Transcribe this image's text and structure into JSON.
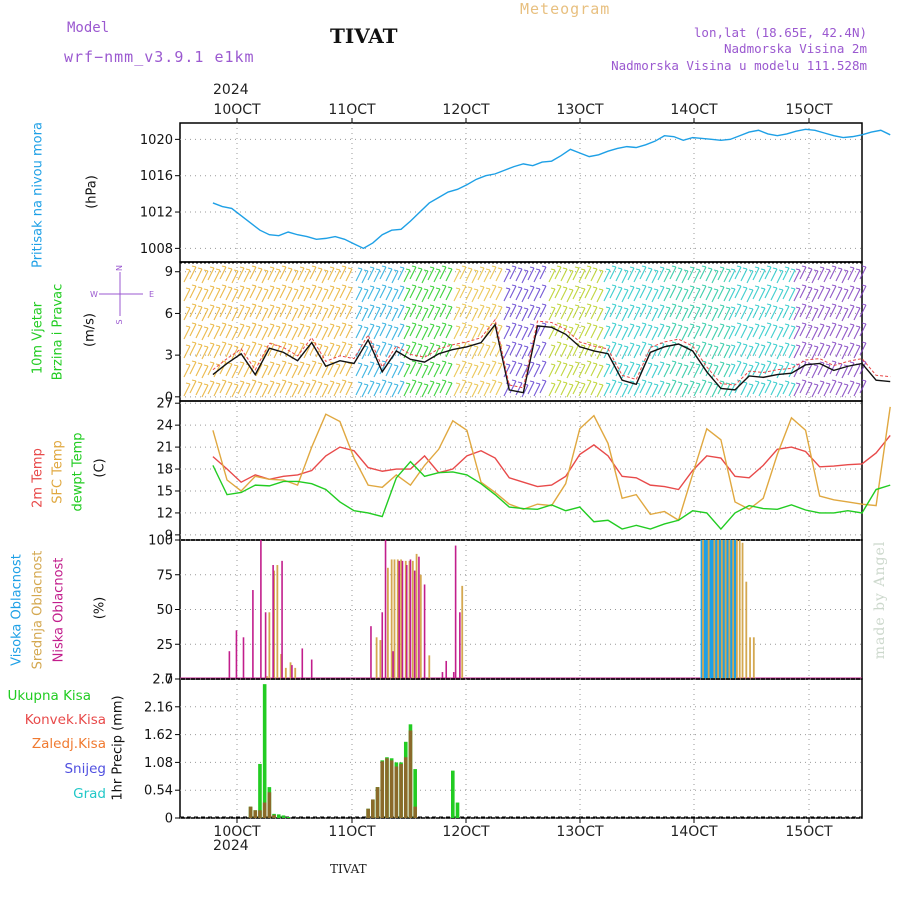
{
  "header": {
    "model_label": "Model",
    "model_name": "wrf−nmm_v3.9.1 e1km",
    "station": "TIVAT",
    "product": "Meteogram",
    "lonlat": "lon,lat (18.65E, 42.4N)",
    "elevation": "Nadmorska Visina 2m",
    "model_elevation": "Nadmorska Visina u modelu 111.528m"
  },
  "time_axis": {
    "year": "2024",
    "top_labels": [
      "10OCT",
      "11OCT",
      "12OCT",
      "13OCT",
      "14OCT",
      "15OCT"
    ],
    "bottom_labels": [
      "10OCT",
      "11OCT",
      "12OCT",
      "13OCT",
      "14OCT",
      "15OCT"
    ],
    "bottom_year": "2024",
    "footer_station": "TIVAT"
  },
  "panels": {
    "pressure": {
      "title": "Pritisak na nivou mora",
      "unit": "(hPa)"
    },
    "wind": {
      "title_line1": "10m Vjetar",
      "title_line2": "Brzina i Pravac",
      "unit": "(m/s)",
      "compass_n": "N",
      "compass_s": "S",
      "compass_w": "W",
      "compass_e": "E"
    },
    "temp": {
      "label_2m": "2m Temp",
      "label_sfc": "SFC Temp",
      "label_dew": "dewpt Temp",
      "unit": "(C)"
    },
    "cloud": {
      "label_high": "Visoka Oblacnost",
      "label_mid": "Srednja Oblacnost",
      "label_low": "Niska Oblacnost",
      "unit": "(%)"
    },
    "precip": {
      "unit_label": "1hr Precip (mm)",
      "legend": [
        "Ukupna Kisa",
        "Konvek.Kisa",
        "Zaledj.Kisa",
        "Snijeg",
        "Grad"
      ]
    }
  },
  "watermark": "made by Angel",
  "colors": {
    "pressure": "#1ea0e6",
    "temp2m": "#e84a4a",
    "sfc": "#e0a840",
    "dew": "#22cc22",
    "high_cloud": "#1ea0e6",
    "mid_cloud": "#d4a850",
    "low_cloud": "#c21e8c",
    "total_rain": "#22cc22",
    "conv_rain": "#e84a4a",
    "frozen": "#f07a30",
    "snow": "#5050e0",
    "hail": "#22c8c8",
    "model": "#9b59d0",
    "product": "#e8c080"
  },
  "chart_data": [
    {
      "type": "line",
      "name": "pressure",
      "ylim": [
        1006.5,
        1021.8
      ],
      "yticks": [
        1008,
        1012,
        1016,
        1020
      ],
      "x": [
        0,
        2,
        4,
        6,
        8,
        10,
        12,
        14,
        16,
        18,
        20,
        22,
        24,
        26,
        28,
        30,
        32,
        34,
        36,
        38,
        40,
        42,
        44,
        46,
        48,
        50,
        52,
        54,
        56,
        58,
        60,
        62,
        64,
        66,
        68,
        70,
        72,
        74,
        76,
        78,
        80,
        82,
        84,
        86,
        88,
        90,
        92,
        94,
        96,
        98,
        100,
        102,
        104,
        106,
        108,
        110,
        112,
        114,
        116,
        118,
        120,
        122,
        124,
        126,
        128,
        130,
        132,
        134,
        136,
        138,
        140,
        142,
        144
      ],
      "values": [
        1013.0,
        1012.6,
        1012.4,
        1011.6,
        1010.8,
        1010.0,
        1009.5,
        1009.4,
        1009.8,
        1009.5,
        1009.3,
        1009.0,
        1009.1,
        1009.3,
        1009.0,
        1008.5,
        1008.0,
        1008.6,
        1009.5,
        1010.0,
        1010.1,
        1011.0,
        1012.0,
        1013.0,
        1013.6,
        1014.2,
        1014.5,
        1015.0,
        1015.6,
        1016.0,
        1016.2,
        1016.6,
        1017.0,
        1017.3,
        1017.1,
        1017.5,
        1017.6,
        1018.2,
        1018.9,
        1018.5,
        1018.1,
        1018.3,
        1018.7,
        1019.0,
        1019.2,
        1019.1,
        1019.4,
        1019.8,
        1020.4,
        1020.3,
        1019.9,
        1020.2,
        1020.1,
        1020.0,
        1019.9,
        1020.0,
        1020.4,
        1020.8,
        1021.0,
        1020.6,
        1020.4,
        1020.6,
        1020.9,
        1021.1,
        1021.0,
        1020.7,
        1020.4,
        1020.2,
        1020.3,
        1020.5,
        1020.8,
        1021.0,
        1020.5
      ]
    },
    {
      "type": "line",
      "name": "wind_speed",
      "ylim": [
        -0.3,
        9.7
      ],
      "yticks": [
        0,
        3,
        6,
        9
      ],
      "x": [
        0,
        3,
        6,
        9,
        12,
        15,
        18,
        21,
        24,
        27,
        30,
        33,
        36,
        39,
        42,
        45,
        48,
        51,
        54,
        57,
        60,
        63,
        66,
        69,
        72,
        75,
        78,
        81,
        84,
        87,
        90,
        93,
        96,
        99,
        102,
        105,
        108,
        111,
        114,
        117,
        120,
        123,
        126,
        129,
        132,
        135,
        138,
        141,
        144
      ],
      "values": [
        1.6,
        2.4,
        3.1,
        1.6,
        3.5,
        3.2,
        2.6,
        3.9,
        2.2,
        2.6,
        2.4,
        4.1,
        1.8,
        3.3,
        2.7,
        2.5,
        3.1,
        3.4,
        3.6,
        3.9,
        5.2,
        0.5,
        0.3,
        5.1,
        5.0,
        4.5,
        3.6,
        3.3,
        3.1,
        1.2,
        0.9,
        3.2,
        3.6,
        3.8,
        3.3,
        1.8,
        0.6,
        0.5,
        1.5,
        1.4,
        1.6,
        1.7,
        2.3,
        2.4,
        1.9,
        2.2,
        2.4,
        1.2,
        1.1
      ]
    },
    {
      "type": "line",
      "name": "temperature",
      "ylim": [
        8.3,
        27.3
      ],
      "yticks": [
        9,
        12,
        15,
        18,
        21,
        24,
        27
      ],
      "x": [
        0,
        3,
        6,
        9,
        12,
        15,
        18,
        21,
        24,
        27,
        30,
        33,
        36,
        39,
        42,
        45,
        48,
        51,
        54,
        57,
        60,
        63,
        66,
        69,
        72,
        75,
        78,
        81,
        84,
        87,
        90,
        93,
        96,
        99,
        102,
        105,
        108,
        111,
        114,
        117,
        120,
        123,
        126,
        129,
        132,
        135,
        138,
        141,
        144
      ],
      "series": [
        {
          "name": "2m Temp",
          "values": [
            19.7,
            18.0,
            16.2,
            17.2,
            16.6,
            17.0,
            17.2,
            17.8,
            19.8,
            21.0,
            20.5,
            18.2,
            17.7,
            18.0,
            18.0,
            19.8,
            17.5,
            18.0,
            19.8,
            20.5,
            19.5,
            16.8,
            16.2,
            15.6,
            15.8,
            17.0,
            20.0,
            21.3,
            19.8,
            17.0,
            16.8,
            15.8,
            15.6,
            15.2,
            17.8,
            19.8,
            19.5,
            17.0,
            16.8,
            18.5,
            20.7,
            21.0,
            20.4,
            18.3,
            18.4,
            18.6,
            18.7,
            20.2,
            22.6
          ]
        },
        {
          "name": "SFC Temp",
          "values": [
            23.3,
            16.5,
            15.0,
            17.0,
            16.6,
            16.5,
            15.8,
            21.0,
            25.5,
            24.5,
            19.5,
            15.8,
            15.5,
            17.2,
            15.8,
            18.5,
            20.7,
            24.6,
            23.3,
            16.2,
            14.8,
            13.2,
            12.5,
            13.2,
            13.0,
            16.0,
            23.5,
            25.3,
            21.5,
            14.0,
            14.5,
            11.8,
            12.2,
            11.0,
            17.3,
            23.5,
            22.0,
            13.5,
            12.5,
            14.0,
            20.0,
            25.0,
            23.3,
            14.3,
            13.8,
            13.5,
            13.2,
            13.0,
            26.5
          ]
        },
        {
          "name": "dewpt Temp",
          "values": [
            18.5,
            14.5,
            14.8,
            15.8,
            15.7,
            16.3,
            16.3,
            16.0,
            15.2,
            13.5,
            12.3,
            12.0,
            11.5,
            16.8,
            19.0,
            17.0,
            17.5,
            17.6,
            17.2,
            16.0,
            14.5,
            12.8,
            12.6,
            12.5,
            13.1,
            12.3,
            12.8,
            10.8,
            11.0,
            9.8,
            10.3,
            9.8,
            10.5,
            11.0,
            12.3,
            12.0,
            9.8,
            12.0,
            13.0,
            12.6,
            12.5,
            13.1,
            12.4,
            12.0,
            12.0,
            12.3,
            12.0,
            15.2,
            15.8
          ]
        }
      ]
    },
    {
      "type": "bar",
      "name": "cloud_cover",
      "ylim": [
        0,
        100
      ],
      "yticks": [
        0,
        25,
        50,
        75,
        100
      ],
      "series": [
        {
          "name": "Visoka Oblacnost",
          "x": [
            104.0,
            104.3,
            104.6,
            104.9,
            105.2,
            105.5,
            105.8,
            106.1,
            106.4,
            106.7,
            107.0,
            107.3,
            107.6,
            107.9,
            108.2,
            108.5,
            108.8,
            109.1,
            109.4,
            109.7,
            110.0,
            110.3,
            110.6,
            110.9
          ],
          "values": [
            100,
            100,
            100,
            100,
            100,
            100,
            100,
            100,
            100,
            100,
            100,
            100,
            100,
            100,
            100,
            100,
            100,
            100,
            100,
            100,
            100,
            100,
            100,
            100
          ]
        },
        {
          "name": "Srednja Oblacnost",
          "x": [
            11.5,
            12,
            13,
            13.7,
            14.5,
            15.5,
            16.5,
            17.5,
            34.8,
            35.6,
            37.2,
            38.0,
            38.6,
            39.3,
            40.0,
            41.0,
            41.8,
            42.5,
            43.3,
            44.2,
            46.0,
            53.0,
            104.2,
            105.4,
            106.6,
            107.4,
            108.2,
            109.0,
            109.8,
            110.6,
            111.4,
            112.0,
            112.6,
            113.4,
            114.2,
            115.0
          ],
          "values": [
            2,
            48,
            78,
            82,
            18,
            8,
            12,
            8,
            30,
            28,
            80,
            86,
            86,
            86,
            86,
            85,
            85,
            85,
            90,
            75,
            17,
            67,
            100,
            100,
            100,
            100,
            100,
            100,
            100,
            100,
            100,
            100,
            98,
            70,
            30,
            30
          ]
        },
        {
          "name": "Niska Oblacnost",
          "x": [
            3.5,
            5.0,
            6.5,
            8.5,
            10.2,
            11.2,
            12.8,
            14.7,
            16.8,
            19.0,
            21.0,
            33.6,
            36.0,
            36.7,
            38.3,
            39.6,
            40.3,
            41.2,
            42.0,
            42.9,
            43.8,
            45.0,
            48.8,
            49.6,
            51.2,
            51.6,
            52.5
          ],
          "values": [
            20,
            35,
            30,
            64,
            100,
            48,
            82,
            85,
            10,
            22,
            14,
            38,
            48,
            100,
            20,
            85,
            85,
            82,
            86,
            78,
            88,
            68,
            5,
            13,
            5,
            96,
            48
          ]
        }
      ]
    },
    {
      "type": "bar",
      "name": "precipitation",
      "ylim": [
        0,
        2.7
      ],
      "yticks": [
        0,
        0.54,
        1.08,
        1.62,
        2.16,
        2.7
      ],
      "series": [
        {
          "name": "Ukupna Kisa",
          "x": [
            8,
            9,
            10,
            11,
            12,
            13,
            14,
            15,
            16,
            33,
            34,
            35,
            36,
            37,
            38,
            39,
            40,
            41,
            42,
            43,
            44,
            45,
            51,
            52
          ],
          "values": [
            0.22,
            0.15,
            1.05,
            2.6,
            0.6,
            0.08,
            0.07,
            0.05,
            0.02,
            0.18,
            0.36,
            0.6,
            1.12,
            1.18,
            1.16,
            1.08,
            1.08,
            1.48,
            1.82,
            0.95,
            0.0,
            0.0,
            0.92,
            0.3
          ]
        },
        {
          "name": "Konvek.Kisa",
          "x": [
            8,
            9,
            10,
            11,
            12,
            13,
            33,
            34,
            35,
            36,
            37,
            38,
            39,
            40,
            41,
            42,
            43
          ],
          "values": [
            0.22,
            0.15,
            0.15,
            0.3,
            0.5,
            0.06,
            0.18,
            0.36,
            0.6,
            1.1,
            1.16,
            1.12,
            1.0,
            1.05,
            1.18,
            1.7,
            0.22
          ]
        }
      ]
    }
  ]
}
